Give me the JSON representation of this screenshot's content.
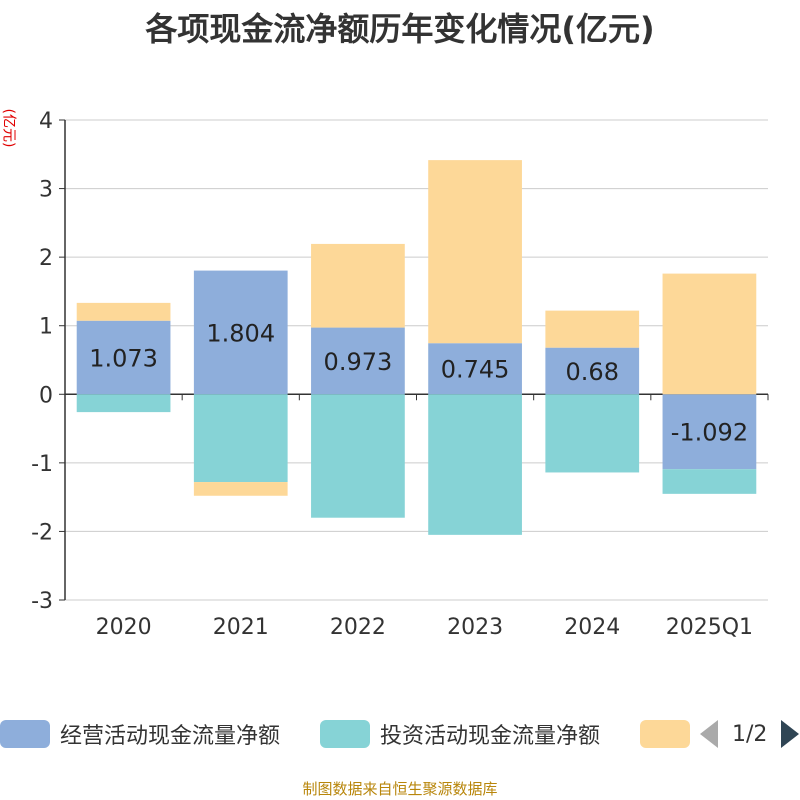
{
  "title": "各项现金流净额历年变化情况(亿元)",
  "unit_label": "(亿元)",
  "footer": "制图数据来自恒生聚源数据库",
  "legend": {
    "items": [
      {
        "label": "经营活动现金流量净额",
        "color": "#8eaedb"
      },
      {
        "label": "投资活动现金流量净额",
        "color": "#86d3d6"
      },
      {
        "label": "",
        "color": "#fdd898"
      }
    ],
    "page": "1/2"
  },
  "chart_data": {
    "type": "bar",
    "stacked": true,
    "categories": [
      "2020",
      "2021",
      "2022",
      "2023",
      "2024",
      "2025Q1"
    ],
    "ylim": [
      -3,
      4
    ],
    "yticks": [
      4,
      3,
      2,
      1,
      0,
      -1,
      -2,
      -3
    ],
    "grid": true,
    "legend_position": "bottom",
    "series": [
      {
        "name": "经营活动现金流量净额",
        "color": "#8eaedb",
        "values": [
          1.073,
          1.804,
          0.973,
          0.745,
          0.68,
          -1.092
        ],
        "labeled": true
      },
      {
        "name": "投资活动现金流量净额",
        "color": "#86d3d6",
        "values": [
          -0.26,
          -1.28,
          -1.8,
          -2.05,
          -1.14,
          -0.36
        ],
        "labeled": false
      },
      {
        "name": "",
        "color": "#fdd898",
        "values": [
          0.26,
          -0.2,
          1.22,
          2.67,
          0.54,
          1.76
        ],
        "labeled": false
      }
    ]
  }
}
